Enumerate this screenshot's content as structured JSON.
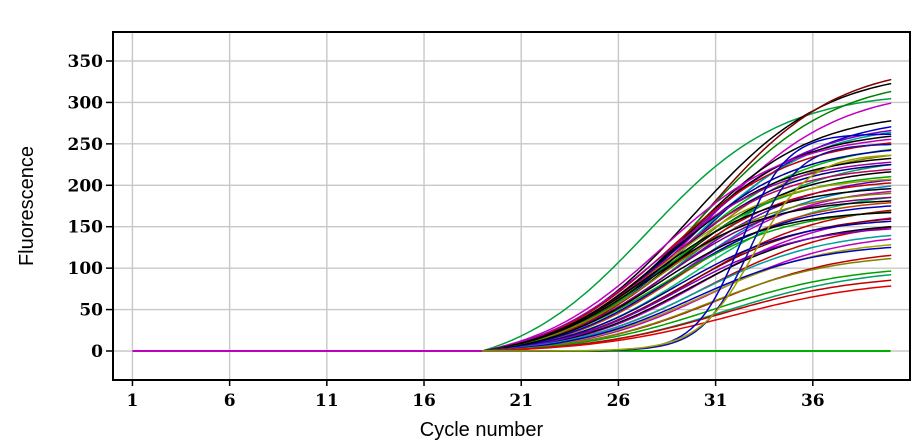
{
  "chart_data": {
    "type": "line",
    "title": "",
    "xlabel": "Cycle number",
    "ylabel": "Fluorescence",
    "xlim": [
      0,
      41
    ],
    "ylim": [
      -35,
      385
    ],
    "xticks": [
      1,
      6,
      11,
      16,
      21,
      26,
      31,
      36
    ],
    "yticks": [
      0,
      50,
      100,
      150,
      200,
      250,
      300,
      350
    ],
    "xtick_labels": [
      "1",
      "6",
      "11",
      "16",
      "21",
      "26",
      "31",
      "36"
    ],
    "ytick_labels": [
      "0",
      "50",
      "100",
      "150",
      "200",
      "250",
      "300",
      "350"
    ],
    "grid": true,
    "legend": "none",
    "baseline": {
      "name": "baseline",
      "color": "#00b000",
      "value": 0
    },
    "series_count": 56,
    "series": [
      {
        "color": "#00a040",
        "plateau": 340,
        "midpoint": 27.5,
        "slope": 0.29
      },
      {
        "color": "#000000",
        "plateau": 355,
        "midpoint": 29.8,
        "slope": 0.29
      },
      {
        "color": "#800000",
        "plateau": 358,
        "midpoint": 30.5,
        "slope": 0.3
      },
      {
        "color": "#008000",
        "plateau": 345,
        "midpoint": 30.2,
        "slope": 0.29
      },
      {
        "color": "#c000c0",
        "plateau": 330,
        "midpoint": 30.4,
        "slope": 0.29
      },
      {
        "color": "#0000c0",
        "plateau": 295,
        "midpoint": 30.0,
        "slope": 0.3
      },
      {
        "color": "#000000",
        "plateau": 300,
        "midpoint": 29.5,
        "slope": 0.31
      },
      {
        "color": "#8000c0",
        "plateau": 290,
        "midpoint": 29.3,
        "slope": 0.3
      },
      {
        "color": "#00a0a0",
        "plateau": 285,
        "midpoint": 29.7,
        "slope": 0.31
      },
      {
        "color": "#000000",
        "plateau": 278,
        "midpoint": 29.0,
        "slope": 0.32
      },
      {
        "color": "#c00000",
        "plateau": 272,
        "midpoint": 28.6,
        "slope": 0.31
      },
      {
        "color": "#c000c0",
        "plateau": 280,
        "midpoint": 28.2,
        "slope": 0.3
      },
      {
        "color": "#00c000",
        "plateau": 265,
        "midpoint": 29.2,
        "slope": 0.3
      },
      {
        "color": "#0000a0",
        "plateau": 260,
        "midpoint": 28.8,
        "slope": 0.32
      },
      {
        "color": "#808000",
        "plateau": 255,
        "midpoint": 29.4,
        "slope": 0.31
      },
      {
        "color": "#000000",
        "plateau": 250,
        "midpoint": 28.4,
        "slope": 0.32
      },
      {
        "color": "#a000a0",
        "plateau": 248,
        "midpoint": 28.0,
        "slope": 0.31
      },
      {
        "color": "#00a060",
        "plateau": 245,
        "midpoint": 29.6,
        "slope": 0.3
      },
      {
        "color": "#000080",
        "plateau": 240,
        "midpoint": 28.7,
        "slope": 0.33
      },
      {
        "color": "#c00060",
        "plateau": 236,
        "midpoint": 28.3,
        "slope": 0.32
      },
      {
        "color": "#000000",
        "plateau": 232,
        "midpoint": 28.9,
        "slope": 0.32
      },
      {
        "color": "#00a000",
        "plateau": 228,
        "midpoint": 28.5,
        "slope": 0.31
      },
      {
        "color": "#6000c0",
        "plateau": 225,
        "midpoint": 29.1,
        "slope": 0.3
      },
      {
        "color": "#a0a000",
        "plateau": 222,
        "midpoint": 28.1,
        "slope": 0.33
      },
      {
        "color": "#c00000",
        "plateau": 218,
        "midpoint": 28.6,
        "slope": 0.32
      },
      {
        "color": "#0080c0",
        "plateau": 215,
        "midpoint": 29.5,
        "slope": 0.31
      },
      {
        "color": "#000000",
        "plateau": 212,
        "midpoint": 27.8,
        "slope": 0.32
      },
      {
        "color": "#c000c0",
        "plateau": 208,
        "midpoint": 29.3,
        "slope": 0.31
      },
      {
        "color": "#808000",
        "plateau": 205,
        "midpoint": 28.2,
        "slope": 0.32
      },
      {
        "color": "#00c060",
        "plateau": 202,
        "midpoint": 29.8,
        "slope": 0.3
      },
      {
        "color": "#800080",
        "plateau": 198,
        "midpoint": 28.4,
        "slope": 0.33
      },
      {
        "color": "#000000",
        "plateau": 195,
        "midpoint": 27.6,
        "slope": 0.33
      },
      {
        "color": "#c04000",
        "plateau": 192,
        "midpoint": 29.0,
        "slope": 0.32
      },
      {
        "color": "#0000c0",
        "plateau": 188,
        "midpoint": 28.7,
        "slope": 0.32
      },
      {
        "color": "#c00000",
        "plateau": 185,
        "midpoint": 29.9,
        "slope": 0.3
      },
      {
        "color": "#00a000",
        "plateau": 182,
        "midpoint": 28.3,
        "slope": 0.31
      },
      {
        "color": "#000000",
        "plateau": 178,
        "midpoint": 28.0,
        "slope": 0.34
      },
      {
        "color": "#c000c0",
        "plateau": 175,
        "midpoint": 30.2,
        "slope": 0.3
      },
      {
        "color": "#800000",
        "plateau": 172,
        "midpoint": 29.4,
        "slope": 0.31
      },
      {
        "color": "#0000a0",
        "plateau": 168,
        "midpoint": 28.9,
        "slope": 0.32
      },
      {
        "color": "#c00000",
        "plateau": 165,
        "midpoint": 30.5,
        "slope": 0.29
      },
      {
        "color": "#000000",
        "plateau": 162,
        "midpoint": 29.6,
        "slope": 0.31
      },
      {
        "color": "#8000c0",
        "plateau": 158,
        "midpoint": 29.1,
        "slope": 0.32
      },
      {
        "color": "#00a0a0",
        "plateau": 152,
        "midpoint": 30.0,
        "slope": 0.3
      },
      {
        "color": "#c000c0",
        "plateau": 148,
        "midpoint": 30.8,
        "slope": 0.3
      },
      {
        "color": "#a0a000",
        "plateau": 140,
        "midpoint": 30.3,
        "slope": 0.3
      },
      {
        "color": "#0000c0",
        "plateau": 135,
        "midpoint": 29.8,
        "slope": 0.31
      },
      {
        "color": "#c00000",
        "plateau": 128,
        "midpoint": 31.0,
        "slope": 0.29
      },
      {
        "color": "#808000",
        "plateau": 122,
        "midpoint": 30.6,
        "slope": 0.3
      },
      {
        "color": "#00a000",
        "plateau": 108,
        "midpoint": 30.9,
        "slope": 0.28
      },
      {
        "color": "#00a060",
        "plateau": 104,
        "midpoint": 31.6,
        "slope": 0.28
      },
      {
        "color": "#c00000",
        "plateau": 96,
        "midpoint": 31.3,
        "slope": 0.28
      },
      {
        "color": "#e00000",
        "plateau": 90,
        "midpoint": 31.8,
        "slope": 0.27
      },
      {
        "color": "#0000c0",
        "plateau": 262,
        "midpoint": 32.3,
        "slope": 0.85
      },
      {
        "color": "#1010a0",
        "plateau": 250,
        "midpoint": 32.8,
        "slope": 0.8
      },
      {
        "color": "#a0a000",
        "plateau": 238,
        "midpoint": 33.0,
        "slope": 0.7
      }
    ],
    "x_start": 19,
    "x_end": 40,
    "ending_early_series": {
      "x_start": 1,
      "x_end": 19,
      "value": 0,
      "color": "#c000c0"
    }
  }
}
